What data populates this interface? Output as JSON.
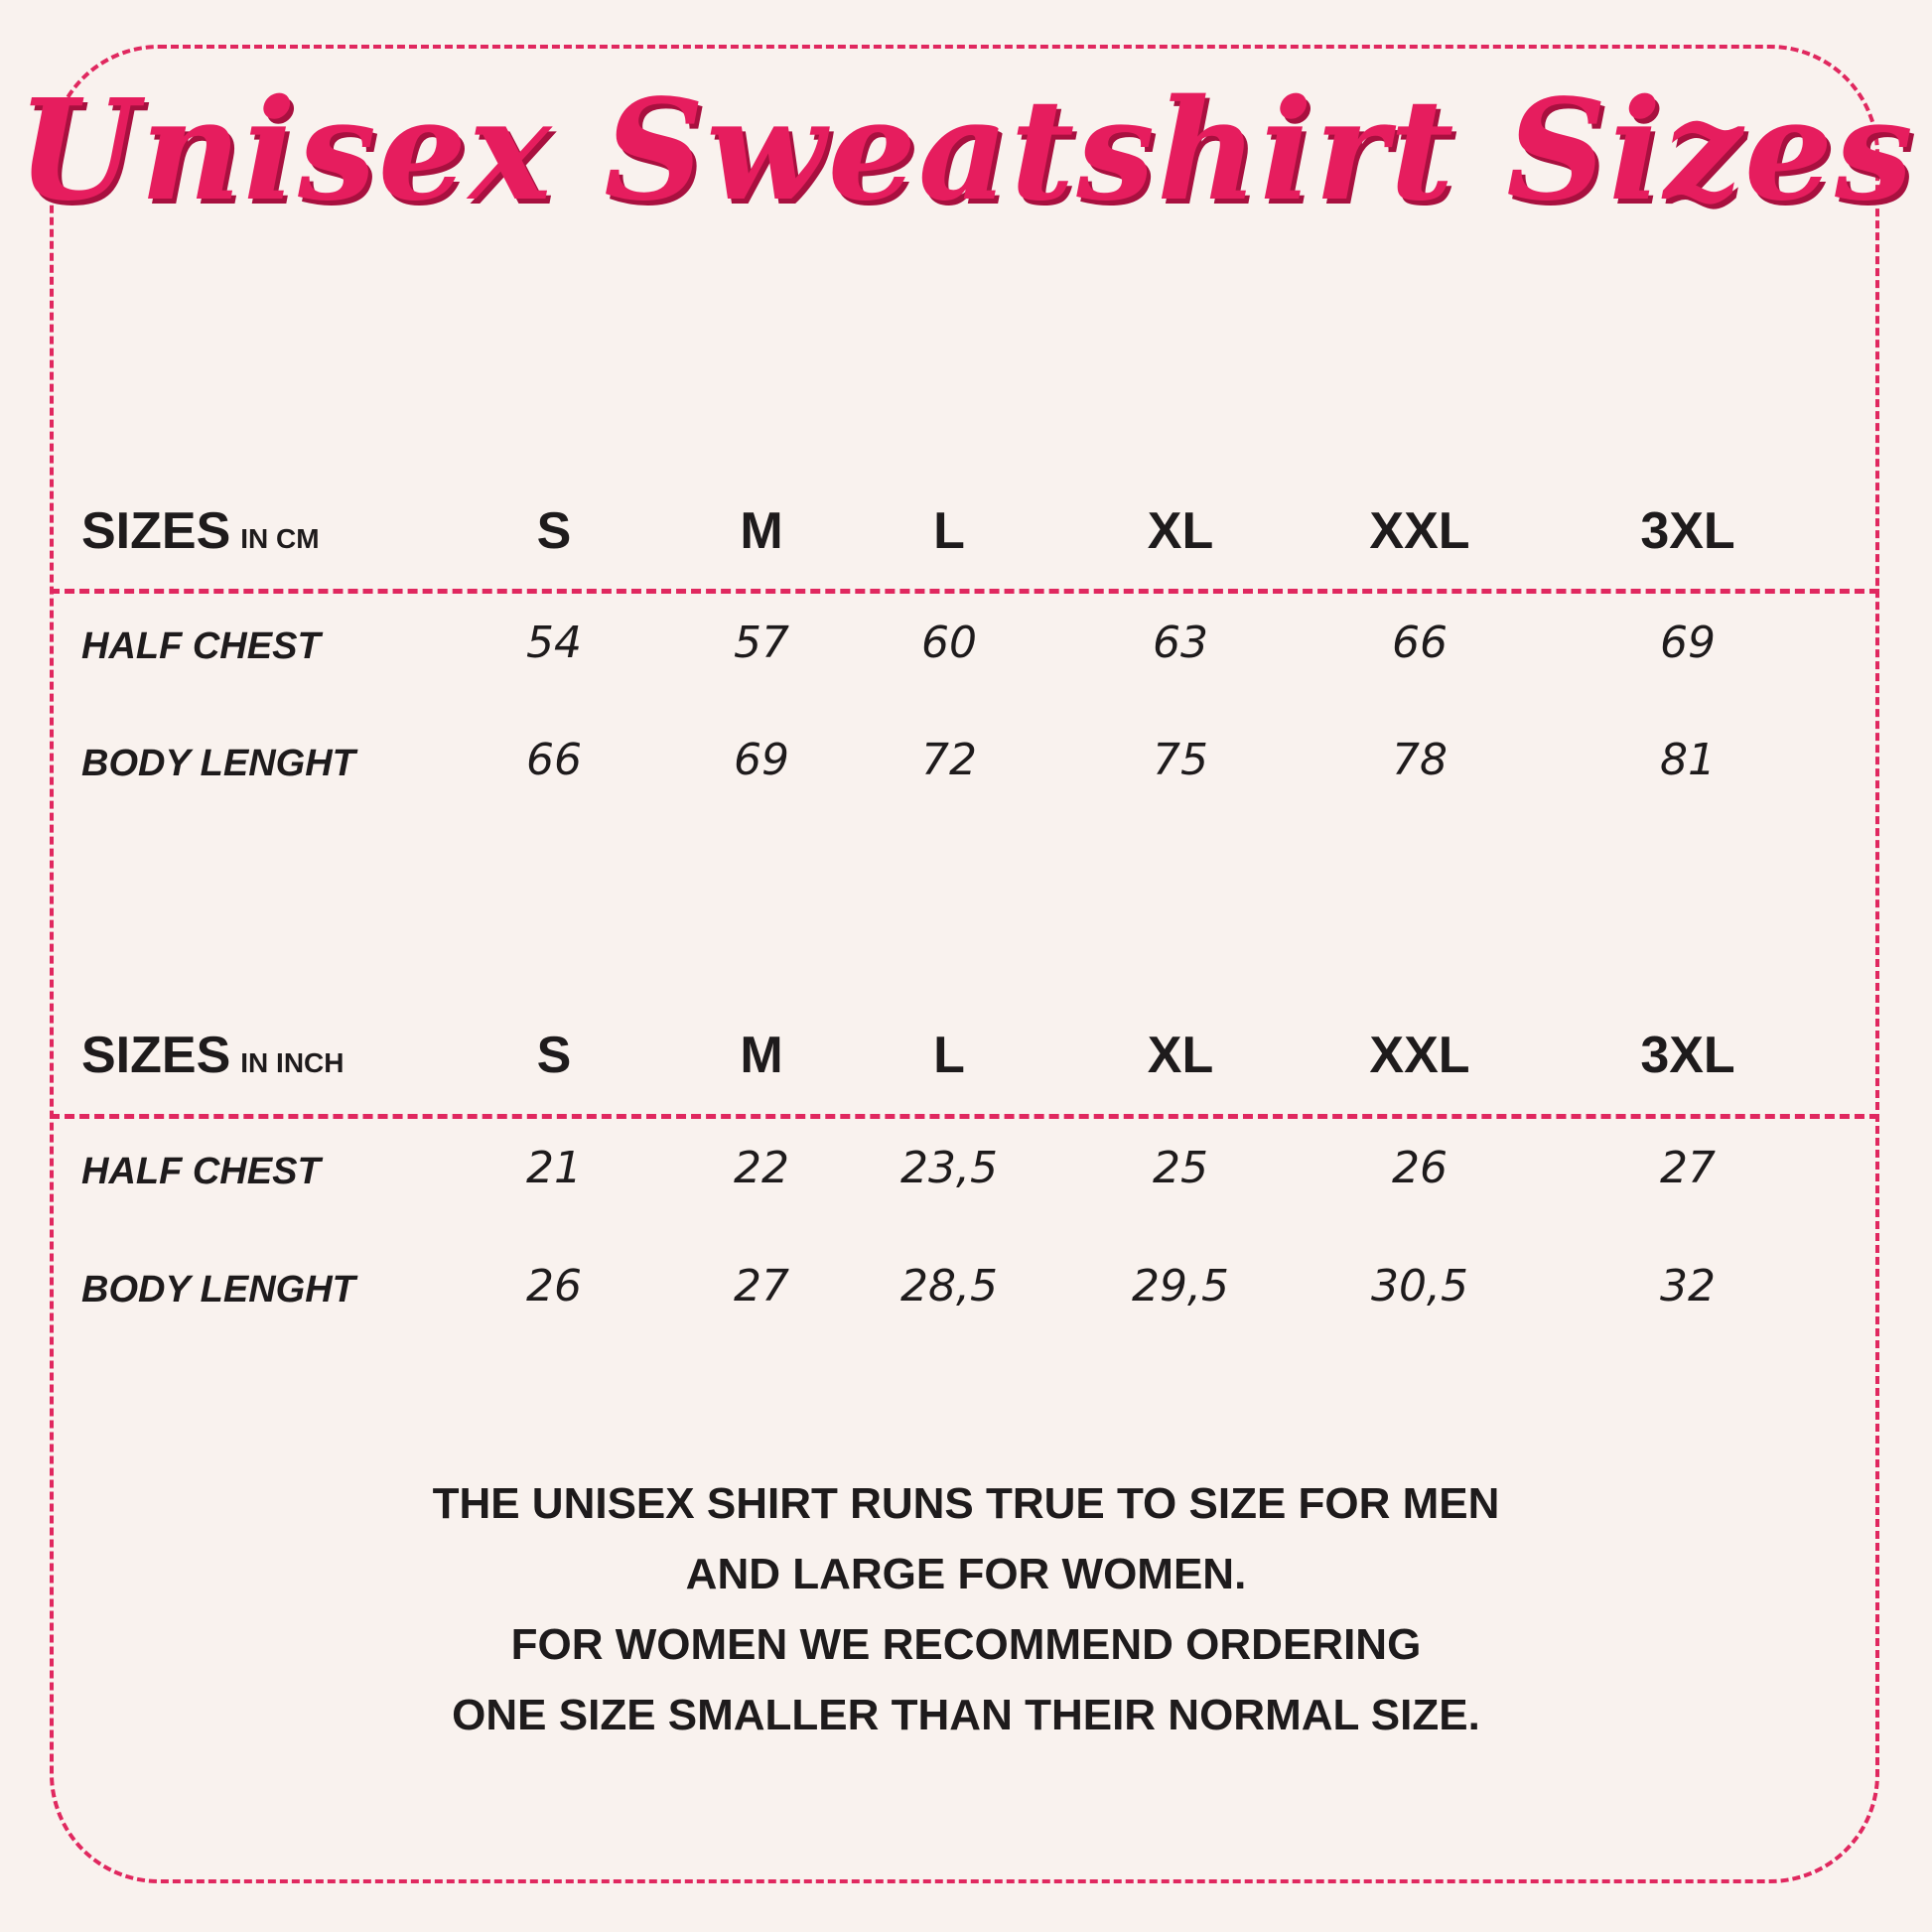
{
  "title": "Unisex Sweatshirt Sizes",
  "sizes": [
    "S",
    "M",
    "L",
    "XL",
    "XXL",
    "3XL"
  ],
  "tables": [
    {
      "label": "SIZES",
      "unit": "IN CM",
      "rows": [
        {
          "label": "HALF CHEST",
          "values": [
            "54",
            "57",
            "60",
            "63",
            "66",
            "69"
          ]
        },
        {
          "label": "BODY LENGHT",
          "values": [
            "66",
            "69",
            "72",
            "75",
            "78",
            "81"
          ]
        }
      ]
    },
    {
      "label": "SIZES",
      "unit": "IN INCH",
      "rows": [
        {
          "label": "HALF CHEST",
          "values": [
            "21",
            "22",
            "23,5",
            "25",
            "26",
            "27"
          ]
        },
        {
          "label": "BODY LENGHT",
          "values": [
            "26",
            "27",
            "28,5",
            "29,5",
            "30,5",
            "32"
          ]
        }
      ]
    }
  ],
  "note": [
    "THE UNISEX SHIRT RUNS TRUE TO SIZE FOR MEN",
    "AND LARGE FOR WOMEN.",
    "FOR WOMEN WE RECOMMEND ORDERING",
    "ONE SIZE SMALLER THAN THEIR NORMAL SIZE."
  ],
  "colors": {
    "accent": "#e61d5e",
    "text": "#1e1b1c",
    "background": "#f9f2ee"
  }
}
